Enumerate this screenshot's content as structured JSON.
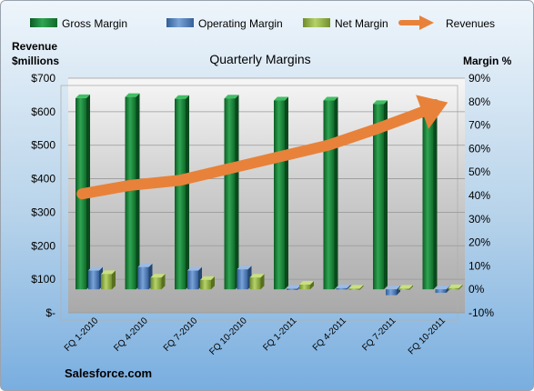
{
  "chart_data": {
    "type": "bar",
    "title": "Quarterly Margins",
    "source": "Salesforce.com",
    "y_left_title": [
      "Revenue",
      "$millions"
    ],
    "y_right_title": "Margin %",
    "categories": [
      "FQ 1-2010",
      "FQ 4-2010",
      "FQ 7-2010",
      "FQ 10-2010",
      "FQ 1-2011",
      "FQ 4-2011",
      "FQ 7-2011",
      "FQ 10-2011"
    ],
    "y_left_range": [
      0,
      700
    ],
    "y_left_ticks": [
      "$-",
      "$100",
      "$200",
      "$300",
      "$400",
      "$500",
      "$600",
      "$700"
    ],
    "y_right_range": [
      -10,
      90
    ],
    "y_right_ticks": [
      "-10%",
      "0%",
      "10%",
      "20%",
      "30%",
      "40%",
      "50%",
      "60%",
      "70%",
      "80%",
      "90%"
    ],
    "legend_position": "top",
    "series": [
      {
        "name": "Gross Margin",
        "axis": "right",
        "kind": "bar",
        "color": "#1f8a3c",
        "values": [
          81.5,
          82,
          81.2,
          81.4,
          80.5,
          80.5,
          79,
          79.5
        ]
      },
      {
        "name": "Operating Margin",
        "axis": "right",
        "kind": "bar",
        "color": "#4f81bd",
        "values": [
          8,
          9.5,
          8,
          8.5,
          0.3,
          0.5,
          -2.5,
          -1.5
        ]
      },
      {
        "name": "Net Margin",
        "axis": "right",
        "kind": "bar",
        "color": "#8db33a",
        "values": [
          6.5,
          5,
          4,
          5,
          2,
          0.3,
          0.3,
          0.5
        ]
      },
      {
        "name": "Revenues",
        "axis": "left",
        "kind": "arrow",
        "color": "#e8823a",
        "values": [
          355,
          380,
          395,
          430,
          465,
          500,
          550,
          605
        ]
      }
    ]
  }
}
